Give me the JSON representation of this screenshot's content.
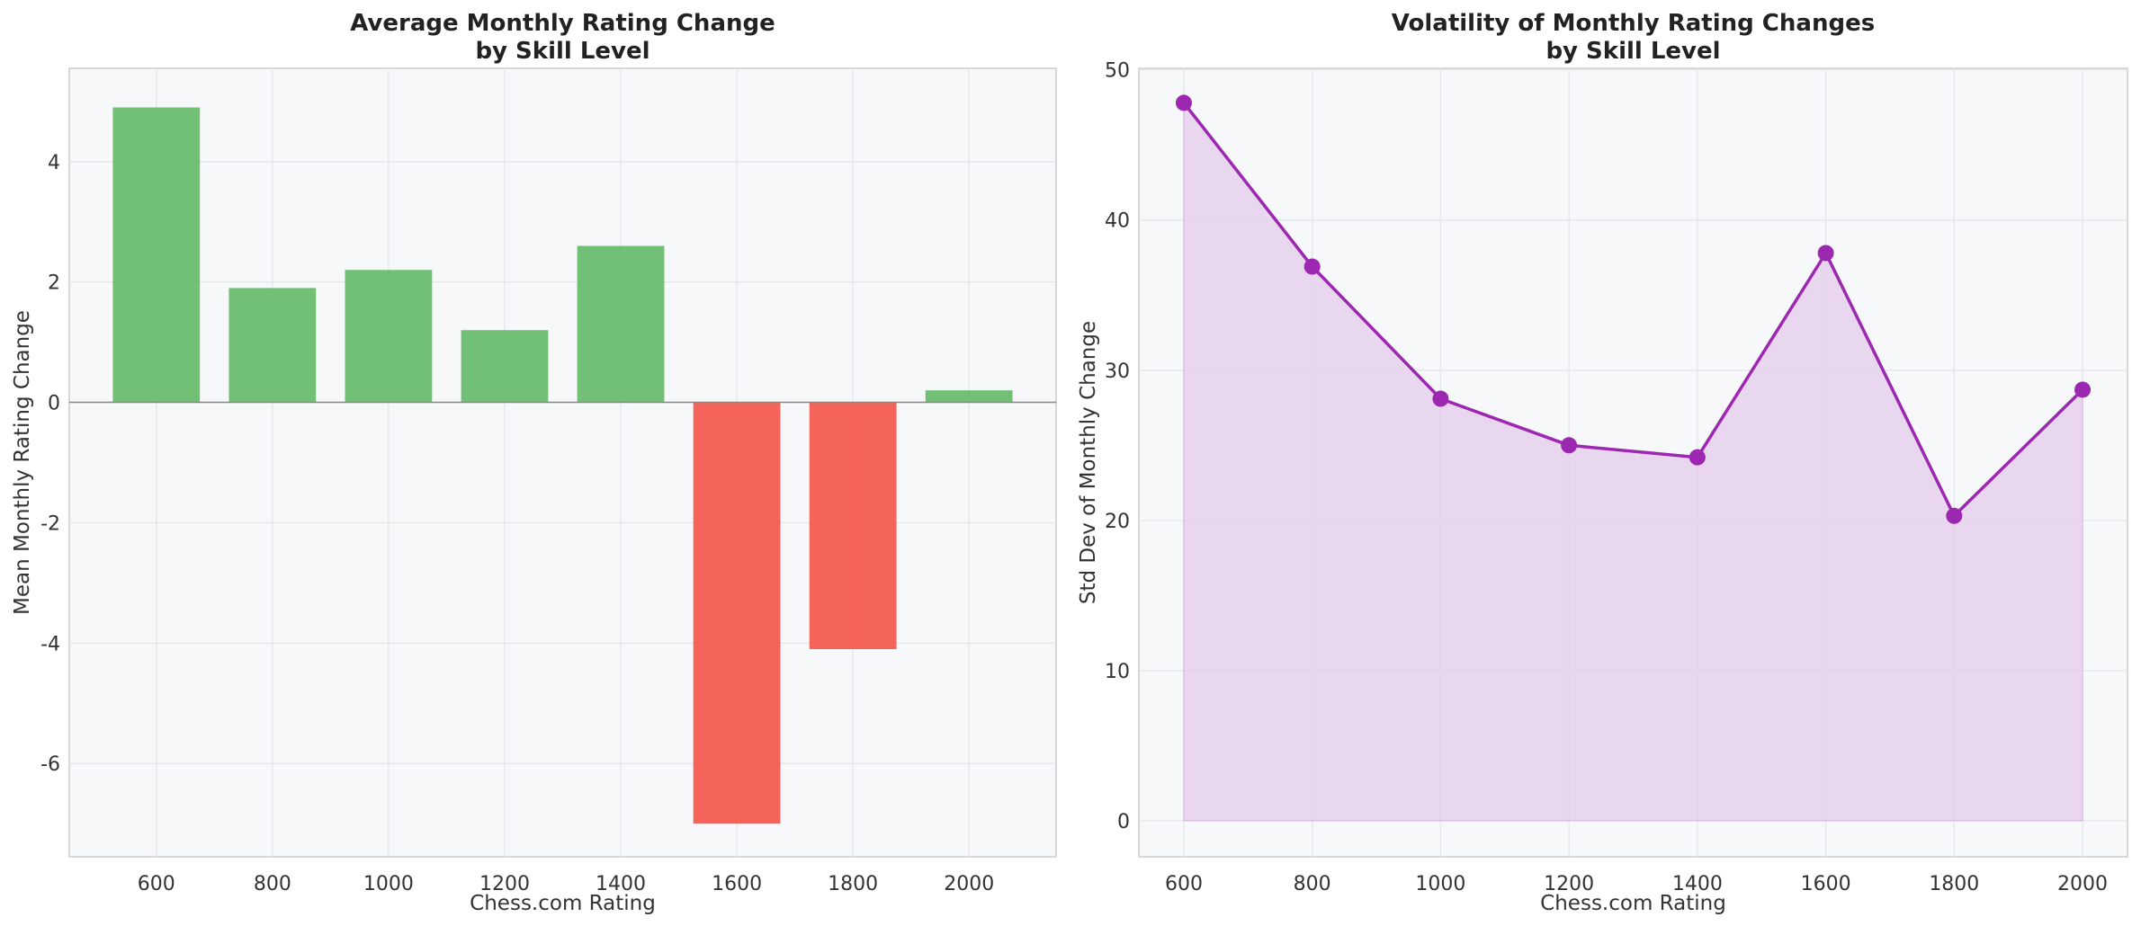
{
  "chart_data": [
    {
      "type": "bar",
      "title": "Average Monthly Rating Change\nby Skill Level",
      "xlabel": "Chess.com Rating",
      "ylabel": "Mean Monthly Rating Change",
      "x": [
        600,
        800,
        1000,
        1200,
        1400,
        1600,
        1800,
        2000
      ],
      "tick_labels_x": [
        "600",
        "800",
        "1000",
        "1200",
        "1400",
        "1600",
        "1800",
        "2000"
      ],
      "values": [
        4.9,
        1.9,
        2.2,
        1.2,
        2.6,
        -7.0,
        -4.1,
        0.2
      ],
      "xlim": [
        450,
        2150
      ],
      "ylim": [
        -7.55,
        5.55
      ],
      "yticks": [
        -6,
        -4,
        -2,
        0,
        2,
        4
      ],
      "tick_labels_y": [
        "-6",
        "-4",
        "-2",
        "0",
        "2",
        "4"
      ],
      "bar_width": 150,
      "grid": true,
      "colors": {
        "positive": "#66bb6a",
        "negative": "#f4574c",
        "zero_line": "#888888"
      }
    },
    {
      "type": "area",
      "title": "Volatility of Monthly Rating Changes\nby Skill Level",
      "xlabel": "Chess.com Rating",
      "ylabel": "Std Dev of Monthly Change",
      "x": [
        600,
        800,
        1000,
        1200,
        1400,
        1600,
        1800,
        2000
      ],
      "tick_labels_x": [
        "600",
        "800",
        "1000",
        "1200",
        "1400",
        "1600",
        "1800",
        "2000"
      ],
      "values": [
        47.8,
        36.9,
        28.1,
        25.0,
        24.2,
        37.8,
        20.3,
        28.7
      ],
      "xlim": [
        530,
        2070
      ],
      "ylim": [
        -2.4,
        50.1
      ],
      "yticks": [
        0,
        10,
        20,
        30,
        40,
        50
      ],
      "tick_labels_y": [
        "0",
        "10",
        "20",
        "30",
        "40",
        "50"
      ],
      "grid": true,
      "colors": {
        "line": "#9c27b0",
        "fill": "#e4cceb"
      }
    }
  ]
}
